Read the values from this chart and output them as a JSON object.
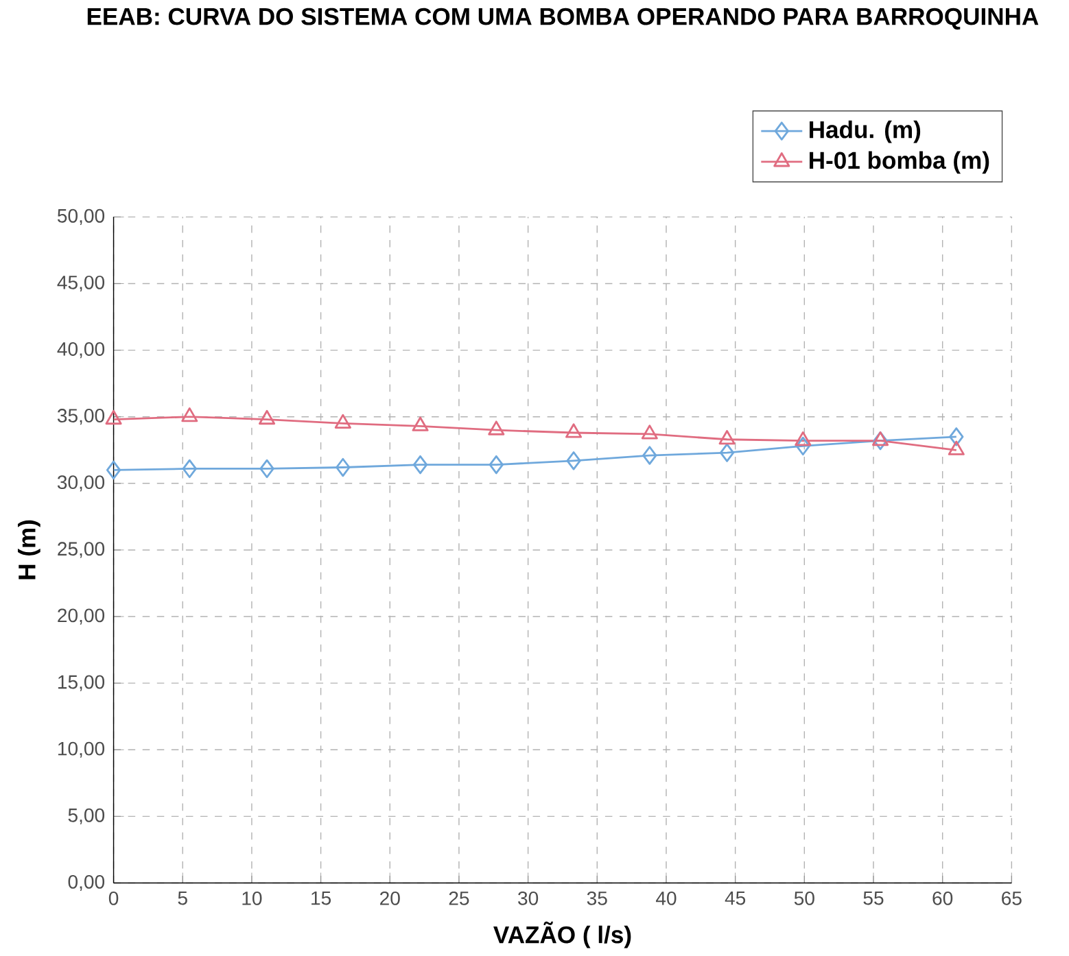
{
  "chart_data": {
    "type": "line",
    "title": "EEAB: CURVA DO SISTEMA COM UMA BOMBA OPERANDO PARA BARROQUINHA",
    "xlabel": "VAZÃO ( l/s)",
    "ylabel": "H (m)",
    "series": [
      {
        "name": "Hadu. (m)",
        "color": "#6fa8dc",
        "marker": "diamond",
        "x": [
          0,
          5.5,
          11.1,
          16.6,
          22.2,
          27.7,
          33.3,
          38.8,
          44.4,
          49.9,
          55.5,
          61.0
        ],
        "values": [
          31.0,
          31.1,
          31.1,
          31.2,
          31.4,
          31.4,
          31.7,
          32.1,
          32.3,
          32.8,
          33.2,
          33.5
        ]
      },
      {
        "name": "H-01 bomba (m)",
        "color": "#e06c80",
        "marker": "triangle",
        "x": [
          0,
          5.5,
          11.1,
          16.6,
          22.2,
          27.7,
          33.3,
          38.8,
          44.4,
          49.9,
          55.5,
          61.0
        ],
        "values": [
          34.8,
          35.0,
          34.8,
          34.5,
          34.3,
          34.0,
          33.8,
          33.7,
          33.3,
          33.2,
          33.2,
          32.5
        ]
      }
    ],
    "xlim": [
      0,
      65
    ],
    "xticks": [
      0,
      5,
      10,
      15,
      20,
      25,
      30,
      35,
      40,
      45,
      50,
      55,
      60,
      65
    ],
    "ylim": [
      0,
      50
    ],
    "yticks": [
      {
        "value": 0,
        "label": "0,00"
      },
      {
        "value": 5,
        "label": "5,00"
      },
      {
        "value": 10,
        "label": "10,00"
      },
      {
        "value": 15,
        "label": "15,00"
      },
      {
        "value": 20,
        "label": "20,00"
      },
      {
        "value": 25,
        "label": "25,00"
      },
      {
        "value": 30,
        "label": "30,00"
      },
      {
        "value": 35,
        "label": "35,00"
      },
      {
        "value": 40,
        "label": "40,00"
      },
      {
        "value": 45,
        "label": "45,00"
      },
      {
        "value": 50,
        "label": "50,00"
      }
    ],
    "grid": true,
    "legend": "top right",
    "line_style": "solid"
  }
}
